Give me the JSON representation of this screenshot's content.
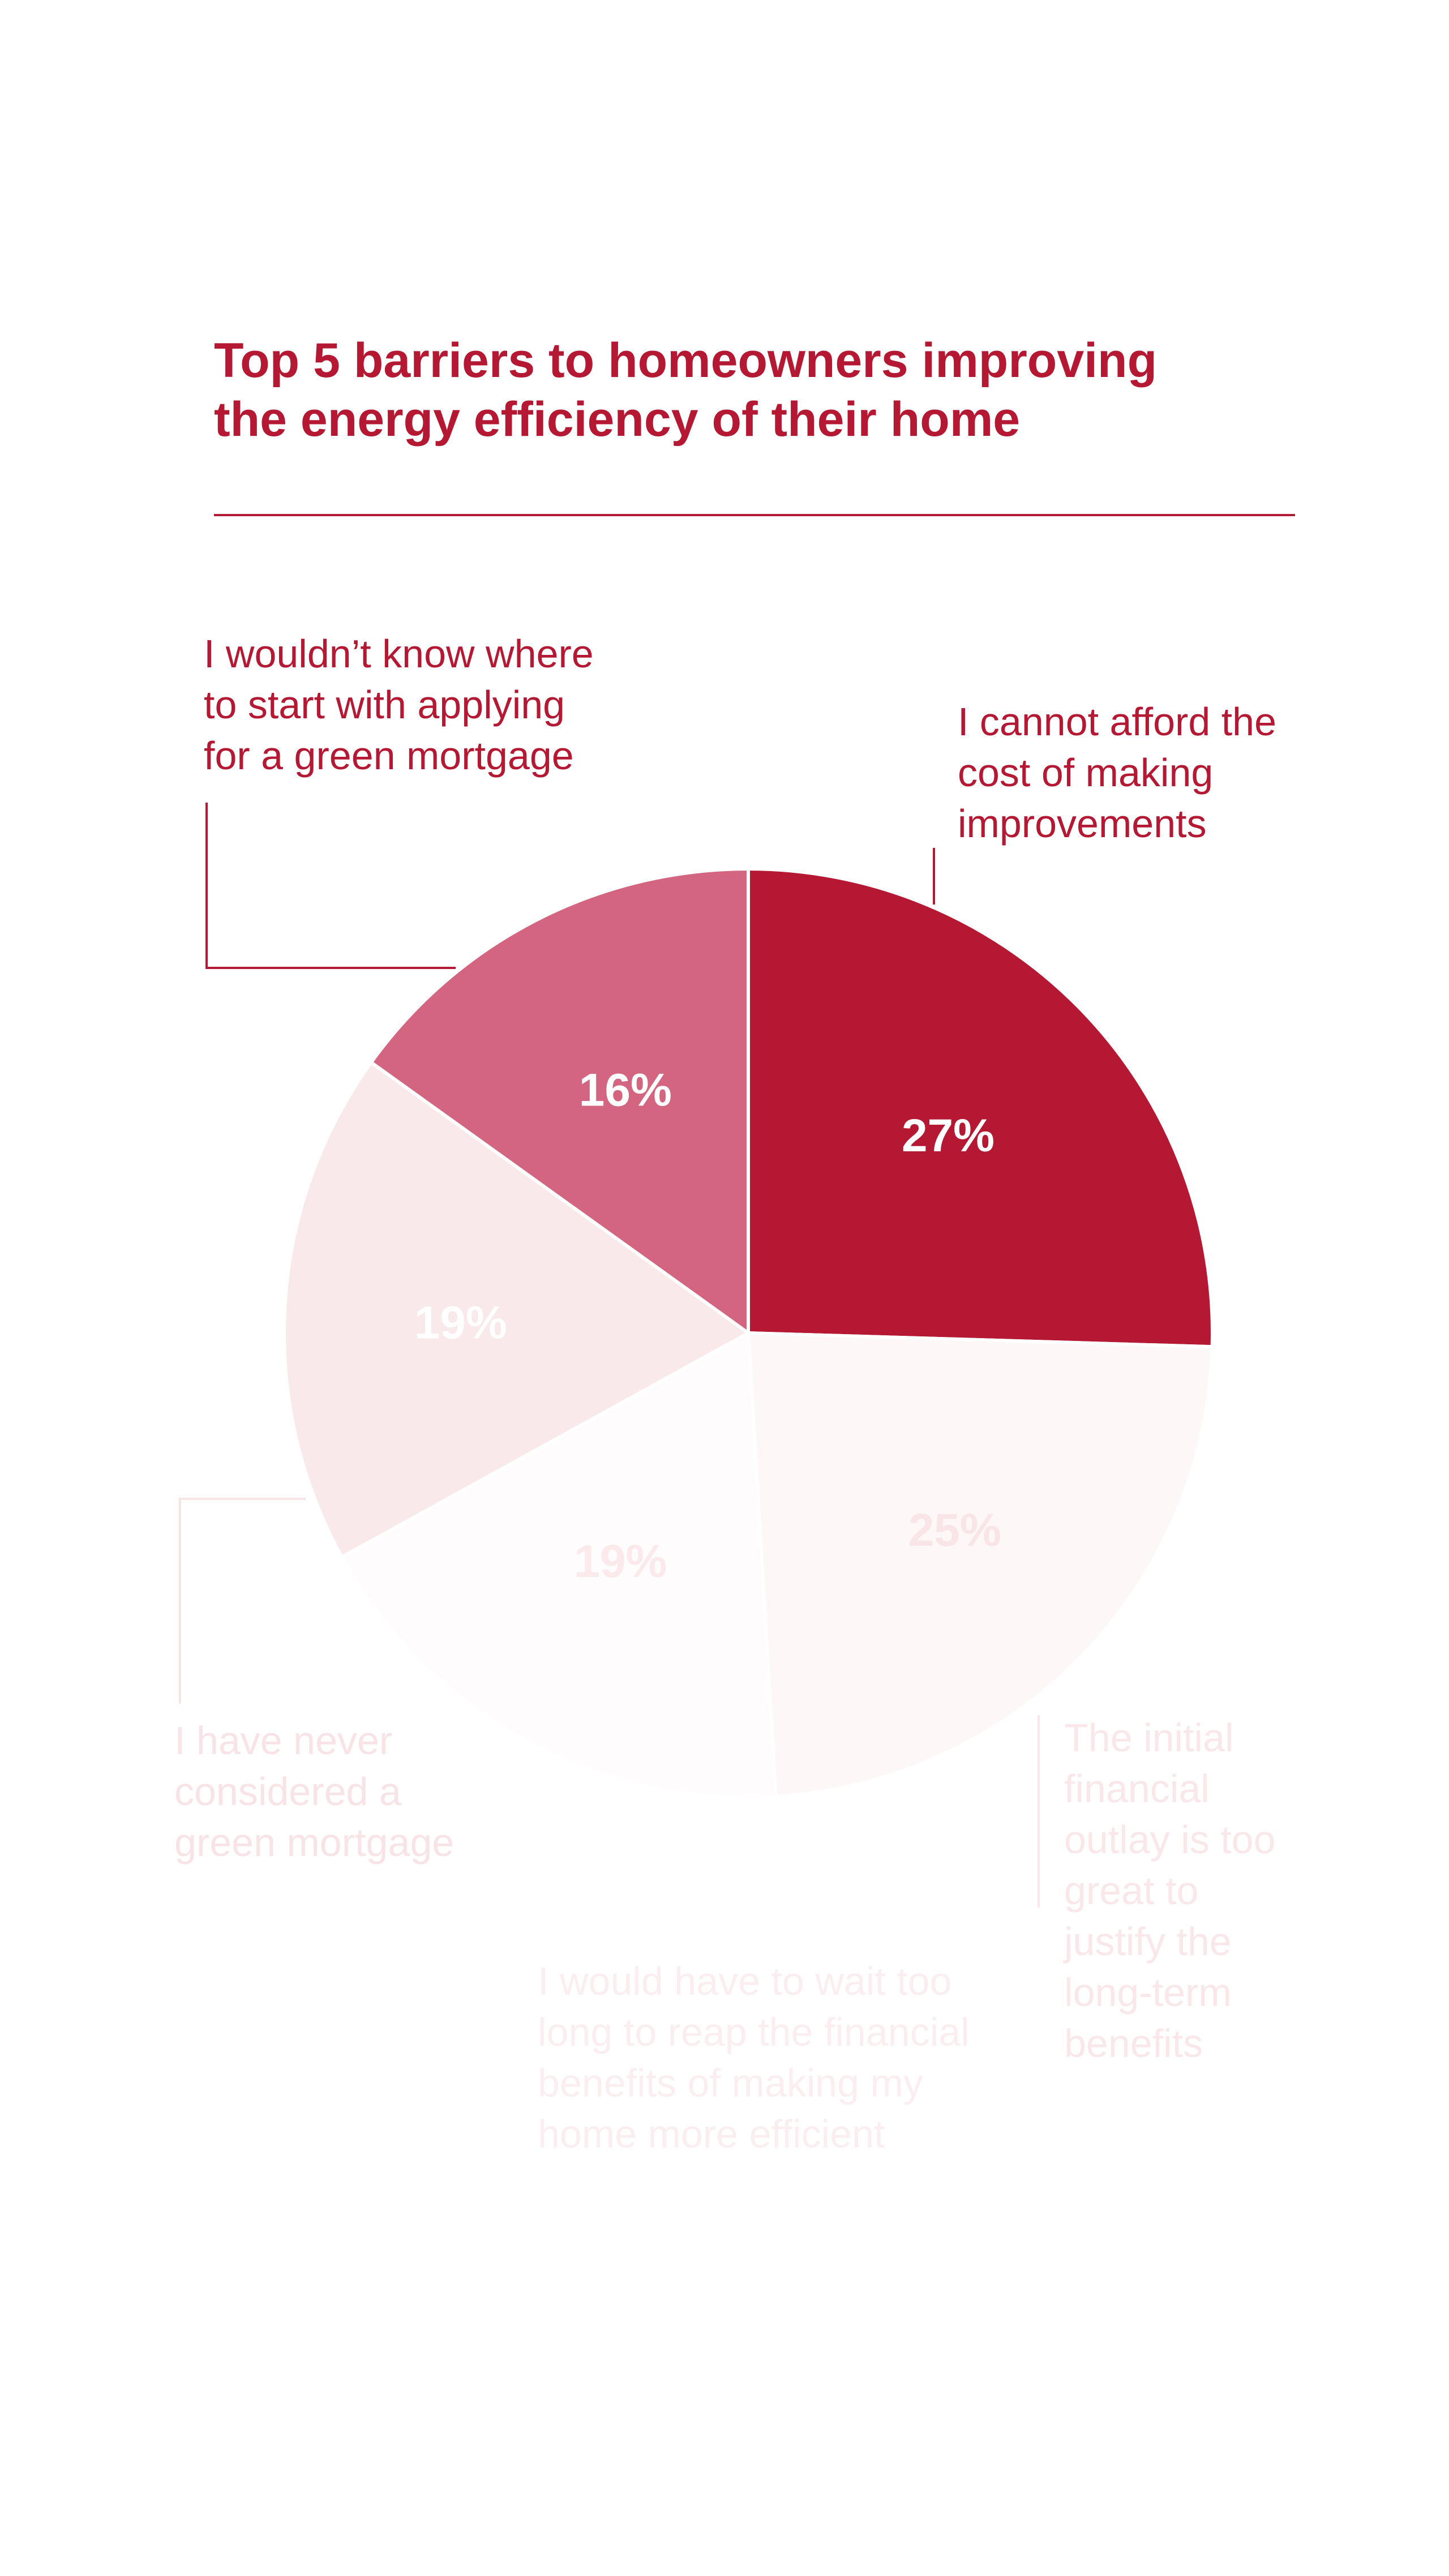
{
  "chart_data": {
    "type": "pie",
    "title": "Top 5 barriers to homeowners improving the energy efficiency of their home",
    "slices": [
      {
        "label": "I cannot afford the cost of making improvements",
        "label_lines": [
          "I cannot afford the",
          "cost of making",
          "improvements"
        ],
        "value": 27,
        "value_label": "27%",
        "color": "#b51833",
        "text_color": "#b51833",
        "value_color": "#ffffff"
      },
      {
        "label": "The initial financial outlay is too great to justify the long-term benefits",
        "label_lines": [
          "The initial",
          "financial",
          "outlay is too",
          "great to",
          "justify the",
          "long-term",
          "benefits"
        ],
        "value": 25,
        "value_label": "25%",
        "color": "#fdf7f8",
        "text_color": "#f9e7ea",
        "value_color": "#f9e4e7"
      },
      {
        "label": "I would have to wait too long to reap the financial benefits of making my home more efficient",
        "label_lines": [
          "I would have to wait too",
          "long to reap the financial",
          "benefits of making my",
          "home more efficient"
        ],
        "value": 19,
        "value_label": "19%",
        "color": "#fefcfc",
        "text_color": "#fbeef0",
        "value_color": "#fbe9ec"
      },
      {
        "label": "I have never considered a green mortgage",
        "label_lines": [
          "I have never",
          "considered a",
          "green mortgage"
        ],
        "value": 19,
        "value_label": "19%",
        "color": "#f9e9ea",
        "text_color": "#f8e4e7",
        "value_color": "#ffffff"
      },
      {
        "label": "I wouldn’t know where to start with applying for a green mortgage",
        "label_lines": [
          "I wouldn’t know where",
          "to start with applying",
          "for a green mortgage"
        ],
        "value": 16,
        "value_label": "16%",
        "color": "#d46580",
        "text_color": "#b51833",
        "value_color": "#ffffff"
      }
    ]
  }
}
